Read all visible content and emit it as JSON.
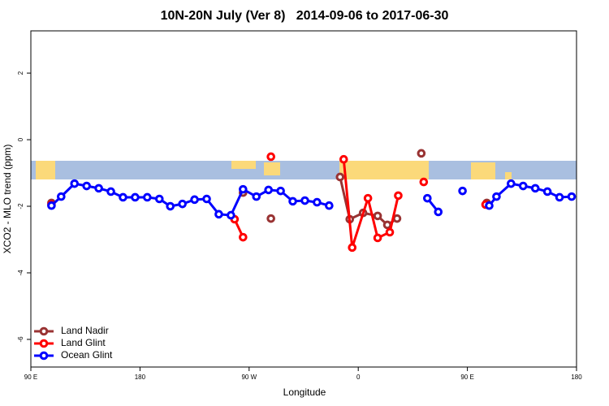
{
  "chart_data": {
    "type": "line",
    "title": "10N-20N July (Ver 8)   2014-09-06 to 2017-06-30",
    "x_label": "Longitude",
    "y_label": "XCO2 - MLO trend (ppm)",
    "xlim": [
      90,
      540
    ],
    "ylim": [
      -6.83,
      3.27
    ],
    "xticks": [
      {
        "value": 90,
        "label": "90 E"
      },
      180,
      {
        "value": 270,
        "label": "90 W"
      },
      {
        "value": 360,
        "label": "0"
      },
      {
        "value": 450,
        "label": "90 E"
      },
      {
        "value": 540,
        "label": "180"
      }
    ],
    "yticks": [
      -6,
      -4,
      -2,
      0,
      2
    ],
    "legend": "bottom-left",
    "series": [
      {
        "name": "Land Nadir",
        "color": "#993333",
        "x": [
          107,
          180,
          265,
          277,
          288,
          318,
          345,
          353,
          364,
          376,
          384,
          392,
          402,
          412,
          440,
          466
        ],
        "values": [
          -1.9,
          null,
          -1.59,
          null,
          -2.37,
          null,
          -1.12,
          -2.39,
          -2.2,
          -2.29,
          -2.56,
          -2.37,
          null,
          -0.41,
          null,
          -1.9
        ]
      },
      {
        "name": "Land Glint",
        "color": "#ff0000",
        "x": [
          107,
          180,
          258,
          265,
          277,
          288,
          318,
          348,
          355,
          368,
          376,
          386,
          393,
          404,
          414,
          440,
          465
        ],
        "values": [
          -1.95,
          null,
          -2.39,
          -2.93,
          null,
          -0.51,
          null,
          -0.59,
          -3.24,
          -1.76,
          -2.95,
          -2.78,
          -1.68,
          null,
          -1.27,
          null,
          -1.95
        ]
      },
      {
        "name": "Ocean Glint",
        "color": "#0000ff",
        "x": [
          107,
          115,
          126,
          136,
          146,
          156,
          166,
          176,
          186,
          196,
          205,
          215,
          225,
          235,
          245,
          255,
          265,
          276,
          286,
          296,
          306,
          316,
          326,
          336,
          376,
          417,
          426,
          436,
          446,
          457,
          468,
          474,
          486,
          496,
          506,
          516,
          526,
          536
        ],
        "values": [
          -1.98,
          -1.71,
          -1.32,
          -1.39,
          -1.46,
          -1.56,
          -1.73,
          -1.73,
          -1.73,
          -1.78,
          -2.0,
          -1.93,
          -1.8,
          -1.78,
          -2.24,
          -2.27,
          -1.49,
          -1.71,
          -1.51,
          -1.54,
          -1.85,
          -1.83,
          -1.88,
          -1.98,
          null,
          -1.76,
          -2.17,
          null,
          -1.54,
          null,
          -1.98,
          -1.71,
          -1.32,
          -1.39,
          -1.46,
          -1.56,
          -1.73,
          -1.71
        ]
      }
    ]
  }
}
